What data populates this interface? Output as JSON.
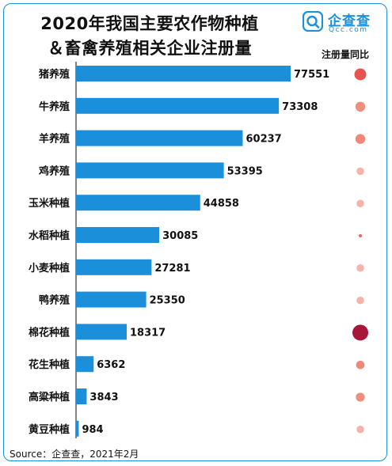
{
  "title_line1": "2020年我国主要农作物种植",
  "title_line2": "＆畜禽养殖相关企业注册量",
  "logo": {
    "name": "企查查",
    "domain": "Qcc.com",
    "icon": "qcc-logo-icon"
  },
  "yoy_header": "注册量同比",
  "source": "Source：企查查，2021年2月",
  "chart_data": {
    "type": "bar",
    "orientation": "horizontal",
    "title": "2020年我国主要农作物种植＆畜禽养殖相关企业注册量",
    "xlabel": "",
    "ylabel": "",
    "xlim": [
      0,
      77551
    ],
    "grid": false,
    "bar_color": "#1b8fd9",
    "categories": [
      "猪养殖",
      "牛养殖",
      "羊养殖",
      "鸡养殖",
      "玉米种植",
      "水稻种植",
      "小麦种植",
      "鸭养殖",
      "棉花种植",
      "花生种植",
      "高粱种植",
      "黄豆种植"
    ],
    "values": [
      77551,
      73308,
      60237,
      53395,
      44858,
      30085,
      27281,
      25350,
      18317,
      6362,
      3843,
      984
    ],
    "yoy_indicator": {
      "label": "注册量同比",
      "encoding": "bubble size and colour intensity",
      "relative_size": [
        0.72,
        0.58,
        0.58,
        0.42,
        0.42,
        0.12,
        0.42,
        0.42,
        1.0,
        0.48,
        0.52,
        0.42
      ],
      "colors": [
        "#e8534f",
        "#f08f7d",
        "#f0877a",
        "#f6b3aa",
        "#f6b3aa",
        "#ec6a5f",
        "#f6b3aa",
        "#f6b3aa",
        "#a8163a",
        "#f0877a",
        "#f08f7d",
        "#f6b3aa"
      ]
    }
  }
}
